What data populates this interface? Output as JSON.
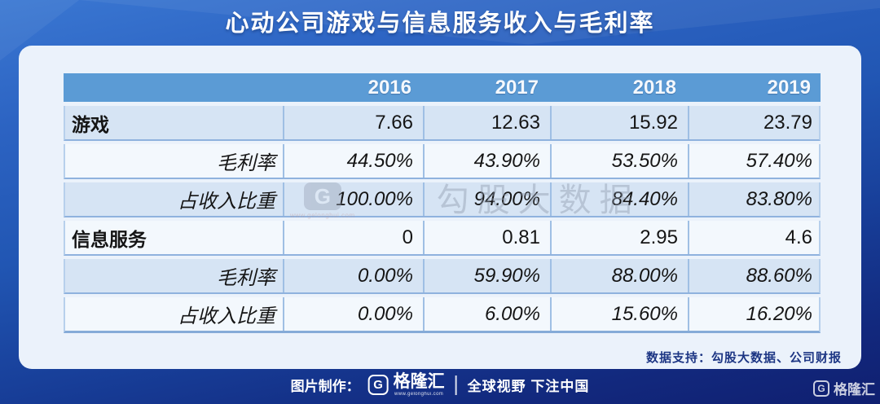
{
  "title": "心动公司游戏与信息服务收入与毛利率",
  "table": {
    "year_columns": [
      "2016",
      "2017",
      "2018",
      "2019"
    ],
    "rows": [
      {
        "label": "游戏",
        "style": "primary",
        "values": [
          "7.66",
          "12.63",
          "15.92",
          "23.79"
        ]
      },
      {
        "label": "毛利率",
        "style": "sub",
        "values": [
          "44.50%",
          "43.90%",
          "53.50%",
          "57.40%"
        ]
      },
      {
        "label": "占收入比重",
        "style": "sub",
        "values": [
          "100.00%",
          "94.00%",
          "84.40%",
          "83.80%"
        ]
      },
      {
        "label": "信息服务",
        "style": "primary",
        "values": [
          "0",
          "0.81",
          "2.95",
          "4.6"
        ]
      },
      {
        "label": "毛利率",
        "style": "sub",
        "values": [
          "0.00%",
          "59.90%",
          "88.00%",
          "88.60%"
        ]
      },
      {
        "label": "占收入比重",
        "style": "sub",
        "values": [
          "0.00%",
          "6.00%",
          "15.60%",
          "16.20%"
        ]
      }
    ]
  },
  "watermark": {
    "brand_letter": "G",
    "url": "www.gelonghui.com",
    "text": "勾股大数据"
  },
  "notes": {
    "data_support": "数据支持：勾股大数据、公司财报"
  },
  "footer": {
    "made_by_label": "图片制作：",
    "brand_letter": "G",
    "brand_name": "格隆汇",
    "brand_url": "www.gelonghui.com",
    "slogan": "全球视野 下注中国"
  },
  "colors": {
    "background_top": "#3a77d2",
    "background_bottom": "#101f70",
    "card_bg": "#ebf2fb",
    "header_bg": "#5b9bd5",
    "row_blue": "#d6e4f4",
    "row_light": "#f3f8fd",
    "grid_line": "#8fb2de",
    "note_navy": "#1d3684"
  },
  "chart_data": {
    "type": "table",
    "title": "心动公司游戏与信息服务收入与毛利率",
    "categories": [
      "2016",
      "2017",
      "2018",
      "2019"
    ],
    "series": [
      {
        "name": "游戏收入",
        "values": [
          7.66,
          12.63,
          15.92,
          23.79
        ]
      },
      {
        "name": "游戏毛利率(%)",
        "values": [
          44.5,
          43.9,
          53.5,
          57.4
        ]
      },
      {
        "name": "游戏占收入比重(%)",
        "values": [
          100.0,
          94.0,
          84.4,
          83.8
        ]
      },
      {
        "name": "信息服务收入",
        "values": [
          0,
          0.81,
          2.95,
          4.6
        ]
      },
      {
        "name": "信息服务毛利率(%)",
        "values": [
          0.0,
          59.9,
          88.0,
          88.6
        ]
      },
      {
        "name": "信息服务占收入比重(%)",
        "values": [
          0.0,
          6.0,
          15.6,
          16.2
        ]
      }
    ],
    "source": "数据支持：勾股大数据、公司财报"
  }
}
